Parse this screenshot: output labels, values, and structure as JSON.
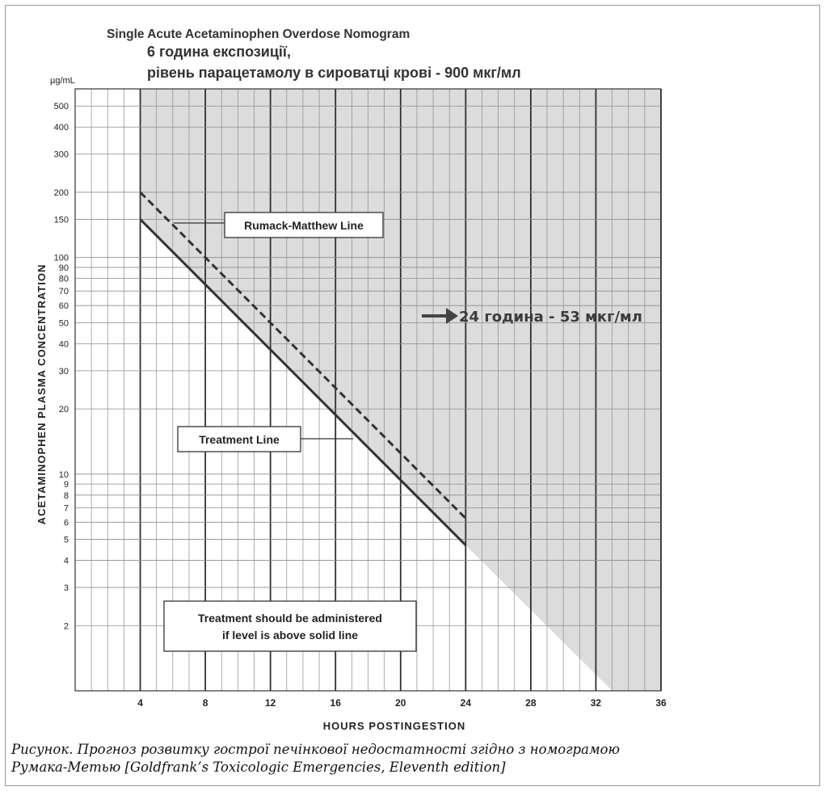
{
  "chart_data": {
    "type": "line",
    "title": "Single Acute Acetaminophen Overdose Nomogram",
    "subtitle_lines": [
      "6 година експозиції,",
      "рівень парацетамолу в сироватці крові - 900 мкг/мл"
    ],
    "xlabel": "HOURS POSTINGESTION",
    "ylabel": "ACETAMINOPHEN PLASMA CONCENTRATION",
    "yunit": "µg/mL",
    "xlim": [
      0,
      36
    ],
    "ylim": [
      1,
      600
    ],
    "yscale": "log",
    "grid": true,
    "x_ticks": [
      4,
      8,
      12,
      16,
      20,
      24,
      28,
      32,
      36
    ],
    "y_ticks": [
      2,
      3,
      4,
      5,
      6,
      7,
      8,
      9,
      10,
      20,
      30,
      40,
      50,
      60,
      70,
      80,
      90,
      100,
      150,
      200,
      300,
      400,
      500
    ],
    "series": [
      {
        "name": "Rumack-Matthew Line",
        "style": "dashed",
        "x": [
          4,
          24
        ],
        "y": [
          200,
          6.25
        ]
      },
      {
        "name": "Treatment Line",
        "style": "solid",
        "x": [
          4,
          24
        ],
        "y": [
          150,
          4.7
        ]
      }
    ],
    "shaded_region": {
      "description": "treatment zone",
      "boundary_x": [
        4,
        24,
        33
      ],
      "boundary_y": [
        150,
        4.7,
        1
      ]
    },
    "annotations": {
      "rumack_label": "Rumack-Matthew Line",
      "treatment_label": "Treatment Line",
      "advice_line1": "Treatment should be administered",
      "advice_line2": "if level is above solid line",
      "arrow_text": "24 година - 53 мкг/мл"
    }
  },
  "caption": {
    "line1": "Рисунок. Прогноз розвитку гострої печінкової недостатності згідно з номограмою",
    "line2": "Румака-Метью [Goldfrank’s Toxicologic Emergencies, Eleventh edition]"
  },
  "colors": {
    "shade": "#dcdcdc",
    "grid": "#8c8c8c",
    "line": "#333333"
  }
}
